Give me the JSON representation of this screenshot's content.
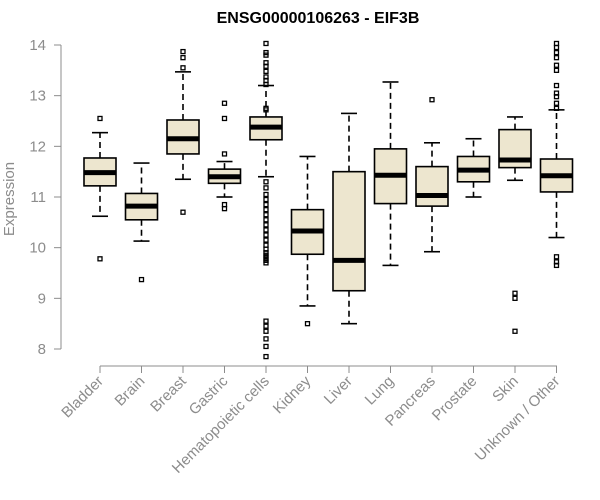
{
  "chart_data": {
    "type": "boxplot",
    "title": "ENSG00000106263 - EIF3B",
    "xlabel": "",
    "ylabel": "Expression",
    "ylim": [
      7.8,
      14.1
    ],
    "yticks": [
      8,
      9,
      10,
      11,
      12,
      13,
      14
    ],
    "categories": [
      "Bladder",
      "Brain",
      "Breast",
      "Gastric",
      "Hematopoietic cells",
      "Kidney",
      "Liver",
      "Lung",
      "Pancreas",
      "Prostate",
      "Skin",
      "Unknown / Other"
    ],
    "boxes": [
      {
        "name": "Bladder",
        "whisker_low": 10.62,
        "q1": 11.22,
        "median": 11.48,
        "q3": 11.77,
        "whisker_high": 12.27,
        "outliers": [
          12.55,
          9.78
        ]
      },
      {
        "name": "Brain",
        "whisker_low": 10.13,
        "q1": 10.55,
        "median": 10.82,
        "q3": 11.07,
        "whisker_high": 11.67,
        "outliers": [
          9.37
        ]
      },
      {
        "name": "Breast",
        "whisker_low": 11.35,
        "q1": 11.85,
        "median": 12.15,
        "q3": 12.52,
        "whisker_high": 13.47,
        "outliers": [
          13.87,
          13.75,
          13.55,
          10.7
        ]
      },
      {
        "name": "Gastric",
        "whisker_low": 11.0,
        "q1": 11.27,
        "median": 11.4,
        "q3": 11.55,
        "whisker_high": 11.7,
        "outliers": [
          12.85,
          12.55,
          11.85,
          10.85,
          10.77
        ]
      },
      {
        "name": "Hematopoietic cells",
        "whisker_low": 11.4,
        "q1": 12.13,
        "median": 12.38,
        "q3": 12.58,
        "whisker_high": 13.2,
        "outliers": [
          14.03,
          13.85,
          13.8,
          13.65,
          13.58,
          13.48,
          13.37,
          13.3,
          13.22,
          12.75,
          12.72,
          11.3,
          11.18,
          11.05,
          10.95,
          10.85,
          10.75,
          10.65,
          10.55,
          10.45,
          10.35,
          10.25,
          10.15,
          10.05,
          9.97,
          9.9,
          9.85,
          9.8,
          9.75,
          9.7,
          8.55,
          8.45,
          8.35,
          8.2,
          8.05,
          7.85
        ]
      },
      {
        "name": "Kidney",
        "whisker_low": 8.85,
        "q1": 9.87,
        "median": 10.33,
        "q3": 10.75,
        "whisker_high": 11.8,
        "outliers": [
          8.5
        ]
      },
      {
        "name": "Liver",
        "whisker_low": 8.5,
        "q1": 9.15,
        "median": 9.75,
        "q3": 11.5,
        "whisker_high": 12.65,
        "outliers": []
      },
      {
        "name": "Lung",
        "whisker_low": 9.65,
        "q1": 10.87,
        "median": 11.43,
        "q3": 11.95,
        "whisker_high": 13.27,
        "outliers": []
      },
      {
        "name": "Pancreas",
        "whisker_low": 9.92,
        "q1": 10.82,
        "median": 11.03,
        "q3": 11.6,
        "whisker_high": 12.07,
        "outliers": [
          12.92
        ]
      },
      {
        "name": "Prostate",
        "whisker_low": 11.0,
        "q1": 11.3,
        "median": 11.53,
        "q3": 11.8,
        "whisker_high": 12.15,
        "outliers": []
      },
      {
        "name": "Skin",
        "whisker_low": 11.33,
        "q1": 11.58,
        "median": 11.73,
        "q3": 12.33,
        "whisker_high": 12.58,
        "outliers": [
          9.1,
          9.0,
          8.35
        ]
      },
      {
        "name": "Unknown / Other",
        "whisker_low": 10.2,
        "q1": 11.1,
        "median": 11.42,
        "q3": 11.75,
        "whisker_high": 12.72,
        "outliers": [
          14.03,
          13.95,
          13.85,
          13.75,
          13.6,
          13.5,
          13.2,
          13.05,
          12.98,
          12.85,
          12.75,
          9.82,
          9.72,
          9.65
        ]
      }
    ]
  }
}
